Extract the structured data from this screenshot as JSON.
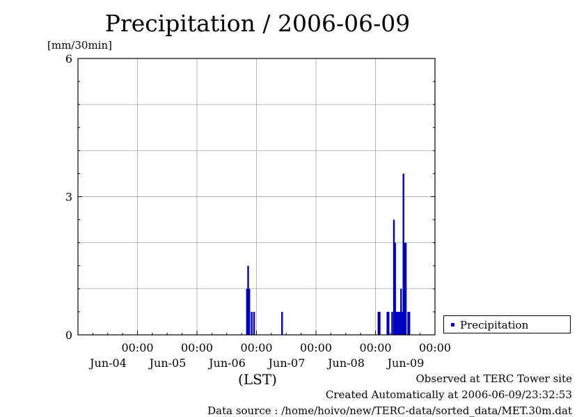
{
  "chart_data": {
    "type": "bar",
    "title": "Precipitation / 2006-06-09",
    "ylabel": "[mm/30min]",
    "xlabel": "(LST)",
    "ylim": [
      0,
      6
    ],
    "yticks": [
      "0",
      "3",
      "6"
    ],
    "xticks": [
      {
        "time": "00:00",
        "date": "Jun-04",
        "day": 1
      },
      {
        "time": "00:00",
        "date": "Jun-05",
        "day": 2
      },
      {
        "time": "00:00",
        "date": "Jun-06",
        "day": 3
      },
      {
        "time": "00:00",
        "date": "Jun-07",
        "day": 4
      },
      {
        "time": "00:00",
        "date": "Jun-08",
        "day": 5
      },
      {
        "time": "00:00",
        "date": "Jun-09",
        "day": 6
      }
    ],
    "xrange_days": [
      0,
      6
    ],
    "grid": true,
    "legend_position": "bottom-right",
    "series": [
      {
        "name": "Precipitation",
        "color": "#0000c0",
        "points": [
          {
            "x": 2.84,
            "y": 1.0
          },
          {
            "x": 2.86,
            "y": 1.5
          },
          {
            "x": 2.88,
            "y": 1.0
          },
          {
            "x": 2.92,
            "y": 0.5
          },
          {
            "x": 2.96,
            "y": 0.5
          },
          {
            "x": 3.43,
            "y": 0.5
          },
          {
            "x": 5.05,
            "y": 0.5
          },
          {
            "x": 5.07,
            "y": 0.5
          },
          {
            "x": 5.2,
            "y": 0.5
          },
          {
            "x": 5.22,
            "y": 0.5
          },
          {
            "x": 5.28,
            "y": 0.5
          },
          {
            "x": 5.31,
            "y": 2.5
          },
          {
            "x": 5.33,
            "y": 2.0
          },
          {
            "x": 5.35,
            "y": 0.5
          },
          {
            "x": 5.37,
            "y": 0.5
          },
          {
            "x": 5.39,
            "y": 0.5
          },
          {
            "x": 5.41,
            "y": 0.5
          },
          {
            "x": 5.43,
            "y": 1.0
          },
          {
            "x": 5.45,
            "y": 0.5
          },
          {
            "x": 5.47,
            "y": 3.5
          },
          {
            "x": 5.49,
            "y": 2.0
          },
          {
            "x": 5.51,
            "y": 2.0
          },
          {
            "x": 5.55,
            "y": 0.5
          },
          {
            "x": 5.57,
            "y": 0.5
          }
        ]
      }
    ]
  },
  "footer": {
    "line1": "Observed at TERC Tower site",
    "line2": "Created Automatically at 2006-06-09/23:32:53",
    "line3": "Data source : /home/hoivo/new/TERC-data/sorted_data/MET.30m.dat"
  }
}
